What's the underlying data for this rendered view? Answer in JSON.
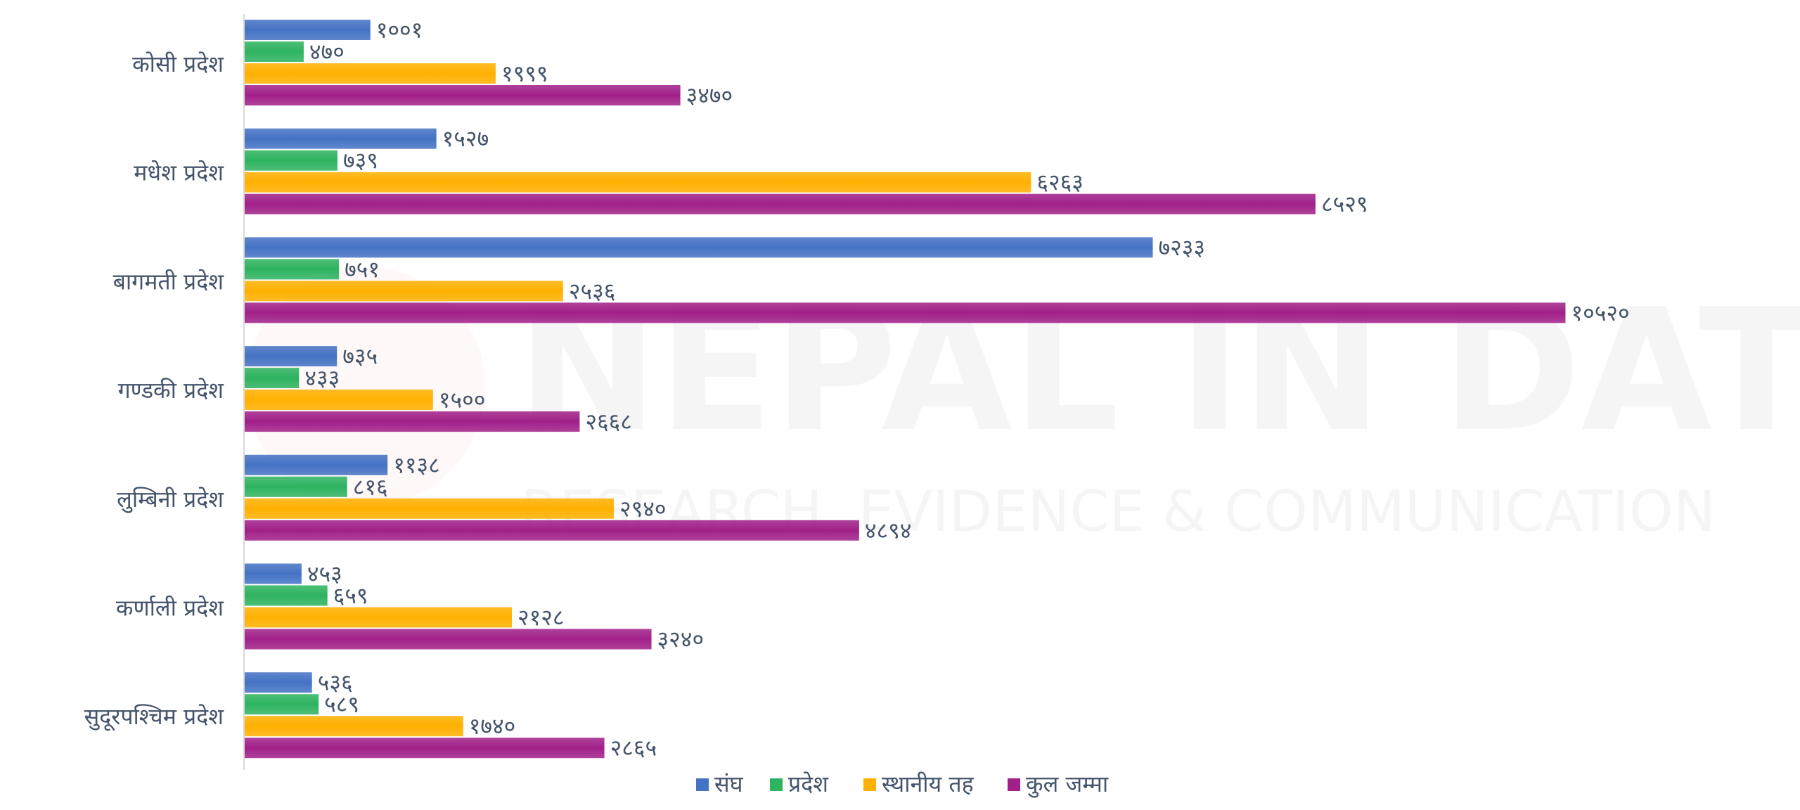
{
  "watermark": {
    "title": "NEPAL IN DATA",
    "subtitle": "RESEARCH, EVIDENCE & COMMUNICATION"
  },
  "chart_data": {
    "type": "bar",
    "orientation": "horizontal",
    "title": "",
    "xlabel": "",
    "ylabel": "",
    "grid": false,
    "legend_position": "bottom",
    "xlim": [
      0,
      11000
    ],
    "categories": [
      "कोसी प्रदेश",
      "मधेश प्रदेश",
      "बागमती प्रदेश",
      "गण्डकी प्रदेश",
      "लुम्बिनी प्रदेश",
      "कर्णाली प्रदेश",
      "सुदूरपश्चिम प्रदेश"
    ],
    "series": [
      {
        "name": "संघ",
        "color": "#4472c4",
        "values": [
          1001,
          1527,
          7233,
          735,
          1138,
          453,
          536
        ],
        "labels": [
          "१००१",
          "१५२७",
          "७२३३",
          "७३५",
          "११३८",
          "४५३",
          "५३६"
        ]
      },
      {
        "name": "प्रदेश",
        "color": "#2eb360",
        "values": [
          470,
          739,
          751,
          433,
          816,
          659,
          589
        ],
        "labels": [
          "४७०",
          "७३९",
          "७५१",
          "४३३",
          "८१६",
          "६५९",
          "५८९"
        ]
      },
      {
        "name": "स्थानीय तह",
        "color": "#ffb000",
        "values": [
          1999,
          6263,
          2536,
          1500,
          2940,
          2128,
          1740
        ],
        "labels": [
          "१९९९",
          "६२६३",
          "२५३६",
          "१५००",
          "२९४०",
          "२१२८",
          "१७४०"
        ]
      },
      {
        "name": "कुल जम्मा",
        "color": "#a12089",
        "values": [
          3470,
          8529,
          10520,
          2668,
          4894,
          3240,
          2865
        ],
        "labels": [
          "३४७०",
          "८५२९",
          "१०५२०",
          "२६६८",
          "४८९४",
          "३२४०",
          "२८६५"
        ]
      }
    ]
  }
}
